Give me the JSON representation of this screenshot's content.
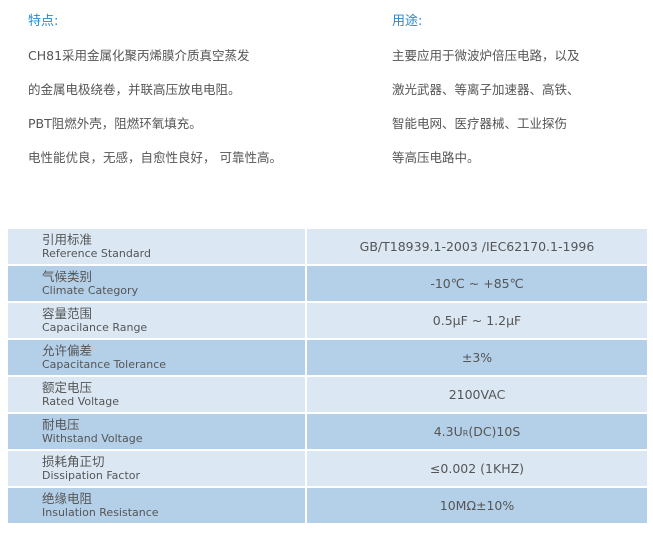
{
  "features": {
    "heading": "特点:",
    "lines": [
      "CH81采用金属化聚丙烯膜介质真空蒸发",
      "的金属电极绕卷，并联高压放电电阻。",
      "PBT阻燃外壳，阻燃环氧填充。",
      "电性能优良，无感，自愈性良好， 可靠性高。"
    ]
  },
  "applications": {
    "heading": "用途:",
    "lines": [
      "主要应用于微波炉倍压电路，以及",
      "激光武器、等离子加速器、高铁、",
      "智能电网、医疗器械、工业探伤",
      "等高压电路中。"
    ]
  },
  "colors": {
    "heading": "#2b87c9",
    "row_light": "#dbe8f4",
    "row_dark": "#b4d0e9"
  },
  "specs": [
    {
      "cn": "引用标准",
      "en": "Reference Standard",
      "value": "GB/T18939.1-2003 /IEC62170.1-1996"
    },
    {
      "cn": "气候类别",
      "en": "Climate Category",
      "value": "-10℃ ~ +85℃"
    },
    {
      "cn": "容量范围",
      "en": "Capacilance Range",
      "value": "0.5μF ~ 1.2μF"
    },
    {
      "cn": "允许偏差",
      "en": "Capacitance Tolerance",
      "value": "±3%"
    },
    {
      "cn": "额定电压",
      "en": "Rated Voltage",
      "value": "2100VAC"
    },
    {
      "cn": "耐电压",
      "en": "Withstand Voltage",
      "value": "4.3UR(DC)10S",
      "value_main": "4.3U",
      "value_sub": "R",
      "value_tail": "(DC)10S"
    },
    {
      "cn": "损耗角正切",
      "en": "Dissipation Factor",
      "value": "≤0.002 (1KHZ)"
    },
    {
      "cn": "绝缘电阻",
      "en": "Insulation Resistance",
      "value": "10MΩ±10%"
    }
  ]
}
